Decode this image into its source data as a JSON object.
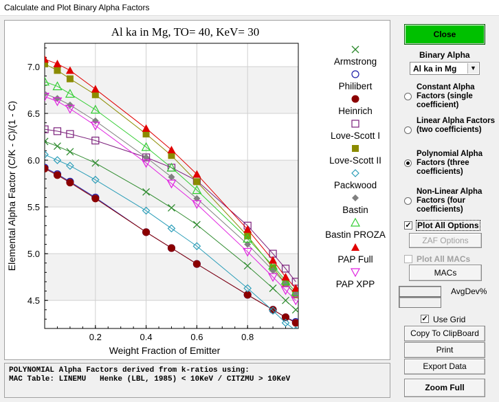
{
  "window": {
    "title": "Calculate and Plot Binary Alpha Factors"
  },
  "chart_data": {
    "type": "line",
    "title": "Al ka in Mg, TO= 40, KeV= 30",
    "xlabel": "Weight Fraction of Emitter",
    "ylabel": "Elemental Alpha Factor (C/K - C)/(1 - C)",
    "xlim": [
      0,
      1
    ],
    "ylim": [
      4.2,
      7.25
    ],
    "xticks": [
      0.2,
      0.4,
      0.6,
      0.8
    ],
    "xtick_labels": [
      "0.2",
      "0.4",
      "0.6",
      "0.8"
    ],
    "yticks": [
      4.5,
      5.0,
      5.5,
      6.0,
      6.5,
      7.0
    ],
    "ytick_labels": [
      "4.5",
      "5.0",
      "5.5",
      "6.0",
      "6.5",
      "7.0"
    ],
    "grid": true,
    "x": [
      0.0,
      0.05,
      0.1,
      0.2,
      0.4,
      0.5,
      0.6,
      0.8,
      0.9,
      0.95,
      0.99
    ],
    "series": [
      {
        "name": "Armstrong",
        "color": "#2e8b2e",
        "marker": "x",
        "values": [
          6.2,
          6.15,
          6.09,
          5.97,
          5.66,
          5.49,
          5.31,
          4.87,
          4.63,
          4.5,
          4.4
        ]
      },
      {
        "name": "Philibert",
        "color": "#1c1ca8",
        "marker": "circle-open",
        "values": [
          5.92,
          5.85,
          5.77,
          5.6,
          5.23,
          5.06,
          4.89,
          4.56,
          4.4,
          4.32,
          4.27
        ]
      },
      {
        "name": "Heinrich",
        "color": "#8b0000",
        "marker": "circle-filled",
        "values": [
          5.91,
          5.84,
          5.76,
          5.59,
          5.23,
          5.06,
          4.89,
          4.56,
          4.4,
          4.32,
          4.26
        ]
      },
      {
        "name": "Love-Scott I",
        "color": "#7a1e7a",
        "marker": "square-open",
        "values": [
          6.33,
          6.31,
          6.28,
          6.21,
          6.03,
          5.92,
          5.78,
          5.3,
          5.0,
          4.84,
          4.7
        ]
      },
      {
        "name": "Love-Scott II",
        "color": "#8b8b00",
        "marker": "square-filled",
        "values": [
          7.03,
          6.96,
          6.87,
          6.7,
          6.28,
          6.05,
          5.77,
          5.19,
          4.85,
          4.68,
          4.56
        ]
      },
      {
        "name": "Packwood",
        "color": "#2a9db8",
        "marker": "diamond-open",
        "values": [
          6.06,
          6.0,
          5.94,
          5.79,
          5.46,
          5.27,
          5.08,
          4.63,
          4.39,
          4.26,
          4.18
        ]
      },
      {
        "name": "Bastin",
        "color": "#808080",
        "marker": "diamond-filled",
        "values": [
          6.71,
          6.66,
          6.59,
          6.42,
          6.03,
          5.82,
          5.59,
          5.1,
          4.82,
          4.68,
          4.57
        ]
      },
      {
        "name": "Bastin PROZA",
        "color": "#32cd32",
        "marker": "triangle-open",
        "values": [
          6.84,
          6.79,
          6.71,
          6.54,
          6.14,
          5.92,
          5.68,
          5.16,
          4.87,
          4.71,
          4.59
        ]
      },
      {
        "name": "PAP Full",
        "color": "#e00000",
        "marker": "triangle-filled",
        "values": [
          7.08,
          7.03,
          6.96,
          6.76,
          6.34,
          6.11,
          5.85,
          5.26,
          4.93,
          4.75,
          4.63
        ]
      },
      {
        "name": "PAP XPP",
        "color": "#e020e0",
        "marker": "triangle-down-open",
        "values": [
          6.68,
          6.63,
          6.55,
          6.37,
          5.97,
          5.75,
          5.53,
          5.02,
          4.75,
          4.61,
          4.5
        ]
      }
    ]
  },
  "status": {
    "line1": "POLYNOMIAL Alpha Factors derived from k-ratios using:",
    "line2": "MAC Table: LINEMU   Henke (LBL, 1985) < 10KeV / CITZMU > 10KeV"
  },
  "sidebar": {
    "close_label": "Close",
    "binary_alpha_label": "Binary Alpha",
    "binary_select_value": "Al ka in Mg",
    "radio_constant": "Constant Alpha Factors (single coefficient)",
    "radio_linear": "Linear Alpha Factors (two coefficients)",
    "radio_polynomial": "Polynomial Alpha Factors (three coefficients)",
    "radio_nonlinear": "Non-Linear Alpha Factors (four coefficients)",
    "plot_all_options": "Plot All Options",
    "zaf_options": "ZAF Options",
    "plot_all_macs": "Plot All MACs",
    "macs": "MACs",
    "avgdev_label": "AvgDev%",
    "use_grid": "Use Grid",
    "copy_clipboard": "Copy To ClipBoard",
    "print": "Print",
    "export_data": "Export Data",
    "zoom_full": "Zoom Full"
  }
}
